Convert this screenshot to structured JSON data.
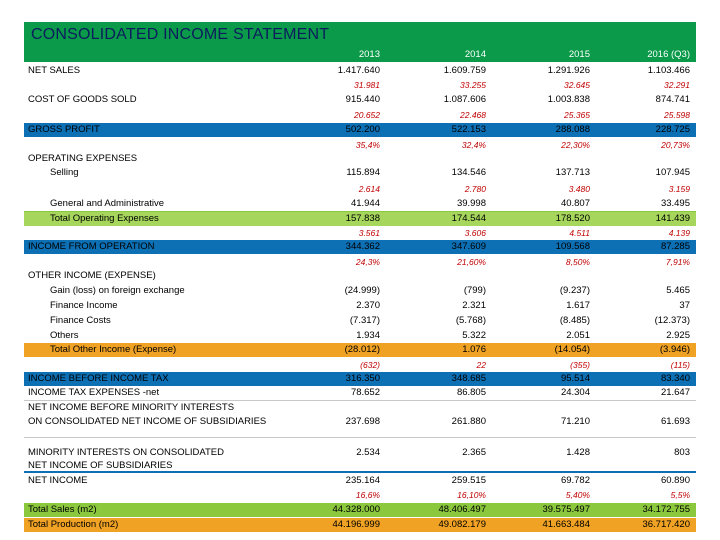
{
  "title": "CONSOLIDATED INCOME STATEMENT",
  "years": [
    "2013",
    "2014",
    "2015",
    "2016 (Q3)"
  ],
  "rows": [
    {
      "label": "NET SALES",
      "values": [
        "1.417.640",
        "1.609.759",
        "1.291.926",
        "1.103.466"
      ]
    },
    {
      "label": "",
      "values": [
        "31.981",
        "33.255",
        "32.645",
        "32.291"
      ],
      "red": true
    },
    {
      "label": "COST OF GOODS SOLD",
      "values": [
        "915.440",
        "1.087.606",
        "1.003.838",
        "874.741"
      ]
    },
    {
      "label": "",
      "values": [
        "20.652",
        "22.468",
        "25.365",
        "25.598"
      ],
      "red": true
    },
    {
      "label": "GROSS PROFIT",
      "values": [
        "502.200",
        "522.153",
        "288.088",
        "228.725"
      ]
    },
    {
      "label": "",
      "values": [
        "35,4%",
        "32,4%",
        "22,30%",
        "20,73%"
      ],
      "red": true
    },
    {
      "label": "OPERATING EXPENSES",
      "values": [
        "",
        "",
        "",
        ""
      ]
    },
    {
      "label": "Selling",
      "values": [
        "115.894",
        "134.546",
        "137.713",
        "107.945"
      ]
    },
    {
      "label": "",
      "values": [
        "2.614",
        "2.780",
        "3.480",
        "3.159"
      ],
      "red": true
    },
    {
      "label": "General and Administrative",
      "values": [
        "41.944",
        "39.998",
        "40.807",
        "33.495"
      ]
    },
    {
      "label": "Total Operating Expenses",
      "values": [
        "157.838",
        "174.544",
        "178.520",
        "141.439"
      ]
    },
    {
      "label": "",
      "values": [
        "3.561",
        "3.606",
        "4.511",
        "4.139"
      ],
      "red": true
    },
    {
      "label": "INCOME FROM OPERATION",
      "values": [
        "344.362",
        "347.609",
        "109.568",
        "87.285"
      ]
    },
    {
      "label": "",
      "values": [
        "24,3%",
        "21,60%",
        "8,50%",
        "7,91%"
      ],
      "red": true
    },
    {
      "label": "OTHER INCOME (EXPENSE)",
      "values": [
        "",
        "",
        "",
        ""
      ]
    },
    {
      "label": "Gain (loss) on foreign exchange",
      "values": [
        "(24.999)",
        "(799)",
        "(9.237)",
        "5.465"
      ]
    },
    {
      "label": "Finance Income",
      "values": [
        "2.370",
        "2.321",
        "1.617",
        "37"
      ]
    },
    {
      "label": "Finance Costs",
      "values": [
        "(7.317)",
        "(5.768)",
        "(8.485)",
        "(12.373)"
      ]
    },
    {
      "label": "Others",
      "values": [
        "1.934",
        "5.322",
        "2.051",
        "2.925"
      ]
    },
    {
      "label": "Total Other Income (Expense)",
      "values": [
        "(28.012)",
        "1.076",
        "(14.054)",
        "(3.946)"
      ]
    },
    {
      "label": "",
      "values": [
        "(632)",
        "22",
        "(355)",
        "(115)"
      ],
      "red": true
    },
    {
      "label": "INCOME BEFORE INCOME TAX",
      "values": [
        "316.350",
        "348.685",
        "95.514",
        "83.340"
      ]
    },
    {
      "label": "INCOME TAX EXPENSES -net",
      "values": [
        "78.652",
        "86.805",
        "24.304",
        "21.647"
      ]
    },
    {
      "label": "NET INCOME BEFORE MINORITY INTERESTS",
      "values": [
        "",
        "",
        "",
        ""
      ]
    },
    {
      "label": "ON CONSOLIDATED NET INCOME OF SUBSIDIARIES",
      "values": [
        "237.698",
        "261.880",
        "71.210",
        "61.693"
      ]
    },
    {
      "label": "MINORITY INTERESTS ON CONSOLIDATED",
      "values": [
        "2.534",
        "2.365",
        "1.428",
        "803"
      ]
    },
    {
      "label": "NET INCOME OF SUBSIDIARIES",
      "values": [
        "",
        "",
        "",
        ""
      ]
    },
    {
      "label": "NET INCOME",
      "values": [
        "235.164",
        "259.515",
        "69.782",
        "60.890"
      ]
    },
    {
      "label": "",
      "values": [
        "16,6%",
        "16,10%",
        "5,40%",
        "5,5%"
      ],
      "red": true
    },
    {
      "label": "Total Sales (m2)",
      "values": [
        "44.328.000",
        "48.406.497",
        "39.575.497",
        "34.172.755"
      ]
    },
    {
      "label": "Total Production (m2)",
      "values": [
        "44.196.999",
        "49.082.179",
        "41.663.484",
        "36.717.420"
      ]
    }
  ],
  "colors": {
    "title_band": "#0a9a4a",
    "blue_band": "#0d6fb4",
    "orange_band": "#f0a225",
    "green_band": "#8cc83e",
    "red_text": "#c00000"
  }
}
